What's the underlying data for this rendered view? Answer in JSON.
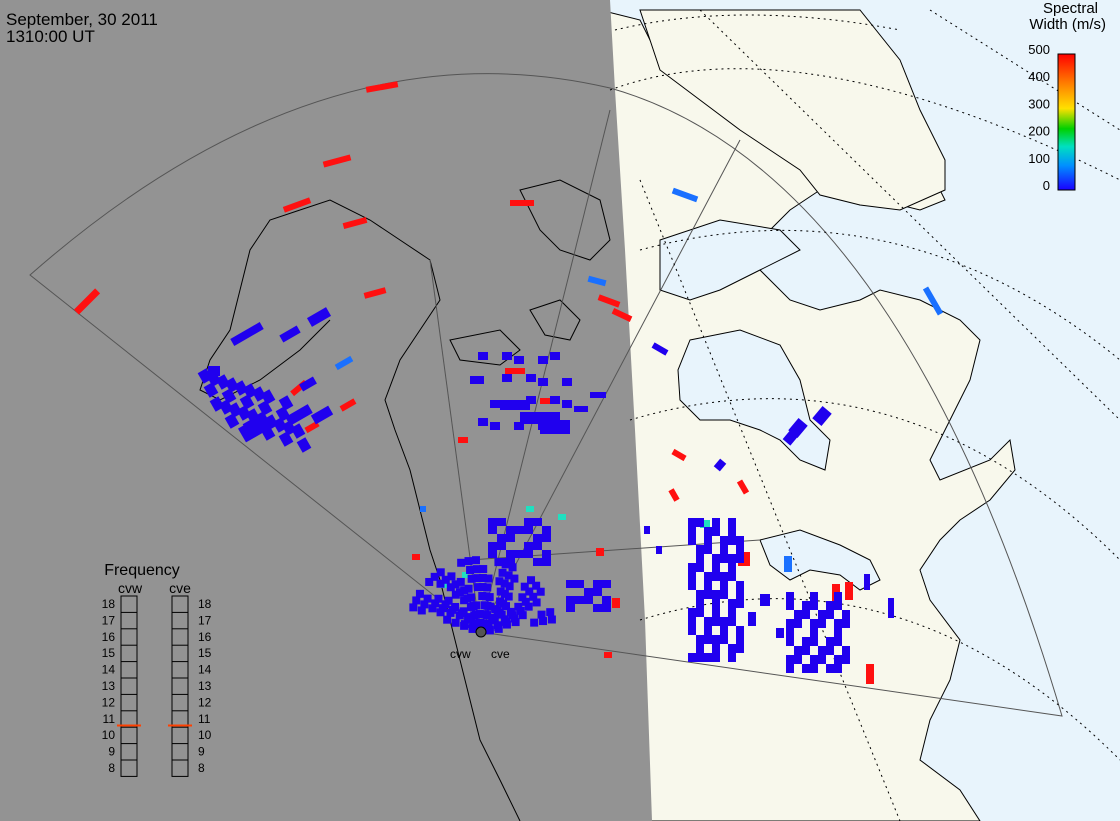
{
  "header": {
    "date": "September, 30 2011",
    "time": "1310:00 UT"
  },
  "colorbar": {
    "title_line1": "Spectral",
    "title_line2": "Width (m/s)",
    "ticks": [
      "500",
      "400",
      "300",
      "200",
      "100",
      "0"
    ],
    "range": [
      0,
      500
    ],
    "colors": [
      "#1a00ff",
      "#0090ff",
      "#00e0c0",
      "#00d000",
      "#ffe000",
      "#ff8000",
      "#ff0000"
    ]
  },
  "frequency": {
    "title": "Frequency",
    "left_label": "cvw",
    "right_label": "cve",
    "scale": [
      "18",
      "17",
      "16",
      "15",
      "14",
      "13",
      "12",
      "11",
      "10",
      "9",
      "8"
    ],
    "cvw_value_mhz": 10.6,
    "cve_value_mhz": 10.6,
    "marker_color": "#ff4000"
  },
  "radars": {
    "west_label": "cvw",
    "east_label": "cve"
  },
  "colors": {
    "night": "#939393",
    "ocean_day": "#e8f4fc",
    "land_day": "#f8f8ec",
    "scatter_low": "#2000ee",
    "scatter_mid": "#1a70ff",
    "scatter_teal": "#20e0c0",
    "scatter_high": "#ff1010"
  }
}
